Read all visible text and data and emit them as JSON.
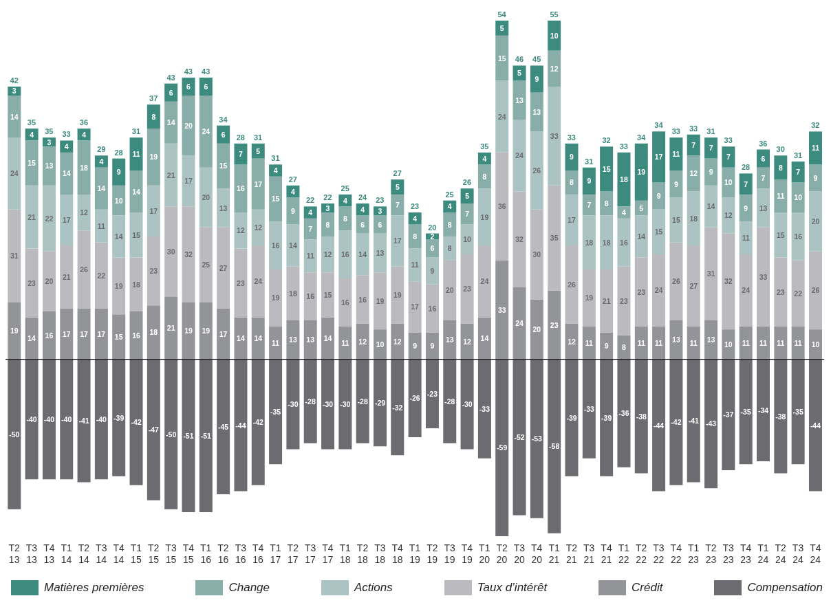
{
  "chart_data": {
    "type": "bar",
    "stacked": true,
    "data_labels": true,
    "legend": "bottom",
    "ylim": [
      -59,
      113
    ],
    "categories": [
      "T2 13",
      "T3 13",
      "T4 13",
      "T1 14",
      "T2 14",
      "T3 14",
      "T4 14",
      "T1 15",
      "T2 15",
      "T3 15",
      "T4 15",
      "T1 16",
      "T2 16",
      "T3 16",
      "T4 16",
      "T1 17",
      "T2 17",
      "T3 17",
      "T4 17",
      "T1 18",
      "T2 18",
      "T3 18",
      "T4 18",
      "T1 19",
      "T2 19",
      "T3 19",
      "T4 19",
      "T1 20",
      "T2 20",
      "T3 20",
      "T4 20",
      "T1 21",
      "T2 21",
      "T3 21",
      "T4 21",
      "T1 22",
      "T2 22",
      "T3 22",
      "T4 22",
      "T1 23",
      "T2 23",
      "T3 23",
      "T4 23",
      "T1 24",
      "T2 24",
      "T3 24",
      "T4 24"
    ],
    "series": [
      {
        "name": "Crédit",
        "color": "#939498",
        "values": [
          19,
          14,
          16,
          17,
          17,
          17,
          15,
          16,
          18,
          21,
          19,
          19,
          17,
          14,
          14,
          11,
          13,
          13,
          14,
          11,
          12,
          10,
          12,
          9,
          9,
          13,
          12,
          14,
          33,
          24,
          20,
          23,
          12,
          11,
          9,
          8,
          11,
          11,
          13,
          11,
          13,
          10,
          11,
          11,
          11,
          11,
          10
        ]
      },
      {
        "name": "Taux d’intérêt",
        "color": "#bbbbbf",
        "values": [
          31,
          23,
          20,
          21,
          26,
          22,
          19,
          18,
          23,
          30,
          32,
          25,
          27,
          23,
          24,
          19,
          18,
          16,
          15,
          16,
          16,
          19,
          19,
          17,
          16,
          20,
          23,
          24,
          36,
          32,
          30,
          35,
          26,
          19,
          21,
          23,
          23,
          24,
          26,
          27,
          31,
          32,
          24,
          33,
          23,
          22,
          26
        ]
      },
      {
        "name": "Actions",
        "color": "#abc4c3",
        "values": [
          24,
          21,
          22,
          17,
          12,
          11,
          14,
          15,
          17,
          21,
          17,
          20,
          13,
          12,
          12,
          16,
          14,
          11,
          12,
          16,
          14,
          13,
          17,
          11,
          9,
          8,
          10,
          19,
          24,
          24,
          26,
          33,
          17,
          18,
          18,
          16,
          14,
          15,
          15,
          18,
          14,
          12,
          11,
          13,
          15,
          16,
          20
        ]
      },
      {
        "name": "Change",
        "color": "#89aea9",
        "values": [
          14,
          15,
          13,
          14,
          18,
          14,
          10,
          14,
          19,
          14,
          20,
          24,
          15,
          16,
          17,
          15,
          9,
          7,
          8,
          8,
          6,
          6,
          7,
          8,
          6,
          8,
          7,
          8,
          15,
          13,
          13,
          12,
          8,
          7,
          8,
          4,
          5,
          9,
          9,
          12,
          9,
          10,
          9,
          7,
          11,
          10,
          9
        ]
      },
      {
        "name": "Matières premières",
        "color": "#3d8a7e",
        "values": [
          3,
          4,
          3,
          4,
          4,
          4,
          9,
          11,
          8,
          6,
          6,
          6,
          6,
          7,
          5,
          4,
          4,
          4,
          3,
          4,
          4,
          3,
          5,
          4,
          2,
          4,
          5,
          4,
          5,
          5,
          9,
          10,
          9,
          9,
          15,
          18,
          19,
          17,
          11,
          7,
          7,
          7,
          7,
          6,
          8,
          7,
          11
        ]
      },
      {
        "name": "Compensation",
        "color": "#6b6b70",
        "values": [
          -50,
          -40,
          -40,
          -40,
          -41,
          -40,
          -39,
          -42,
          -47,
          -50,
          -51,
          -51,
          -45,
          -44,
          -42,
          -35,
          -30,
          -28,
          -30,
          -30,
          -28,
          -29,
          -32,
          -26,
          -23,
          -28,
          -30,
          -33,
          -59,
          -52,
          -53,
          -58,
          -39,
          -33,
          -39,
          -36,
          -38,
          -44,
          -42,
          -41,
          -43,
          -37,
          -35,
          -34,
          -38,
          -35,
          -44
        ]
      }
    ],
    "totals": [
      "42",
      "35",
      "35",
      "33",
      "36",
      "29",
      "28",
      "31",
      "37",
      "43",
      "43",
      "43",
      "34",
      "28",
      "31",
      "31",
      "27",
      "22",
      "22",
      "25",
      "24",
      "23",
      "27",
      "23",
      "20",
      "25",
      "26",
      "35",
      "54",
      "46",
      "45",
      "55",
      "33",
      "31",
      "32",
      "33",
      "34",
      "34",
      "33",
      "33",
      "31",
      "33",
      "28",
      "36",
      "30",
      "31",
      "32"
    ],
    "ref_lines": [
      {
        "axis": "y",
        "value": 0,
        "color": "#222222"
      }
    ]
  }
}
